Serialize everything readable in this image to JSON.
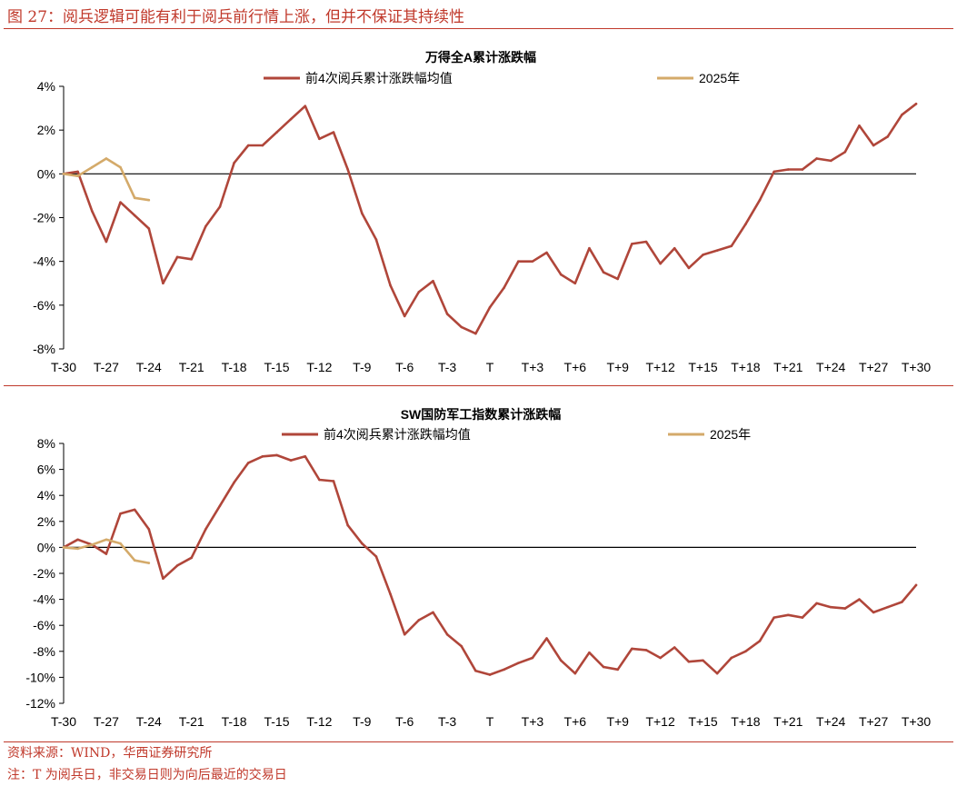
{
  "figure": {
    "title": "图 27：阅兵逻辑可能有利于阅兵前行情上涨，但并不保证其持续性",
    "source": "资料来源：WIND，华西证券研究所",
    "note": "注：T 为阅兵日，非交易日则为向后最近的交易日"
  },
  "colors": {
    "avg": "#b0463a",
    "y2025": "#d4aa6a",
    "accent": "#c0392b"
  },
  "chart_data": [
    {
      "type": "line",
      "title": "万得全A累计涨跌幅",
      "x_ticks": [
        "T-30",
        "T-27",
        "T-24",
        "T-21",
        "T-18",
        "T-15",
        "T-12",
        "T-9",
        "T-6",
        "T-3",
        "T",
        "T+3",
        "T+6",
        "T+9",
        "T+12",
        "T+15",
        "T+18",
        "T+21",
        "T+24",
        "T+27",
        "T+30"
      ],
      "x_range": [
        -30,
        30
      ],
      "ylim": [
        -8,
        4
      ],
      "y_ticks": [
        4,
        2,
        0,
        -2,
        -4,
        -6,
        -8
      ],
      "legend_position": "top",
      "series": [
        {
          "name": "前4次阅兵累计涨跌幅均值",
          "color": "#b0463a",
          "x": [
            -30,
            -29,
            -28,
            -27,
            -26,
            -25,
            -24,
            -23,
            -22,
            -21,
            -20,
            -19,
            -18,
            -17,
            -16,
            -15,
            -14,
            -13,
            -12,
            -11,
            -10,
            -9,
            -8,
            -7,
            -6,
            -5,
            -4,
            -3,
            -2,
            -1,
            0,
            1,
            2,
            3,
            4,
            5,
            6,
            7,
            8,
            9,
            10,
            11,
            12,
            13,
            14,
            15,
            16,
            17,
            18,
            19,
            20,
            21,
            22,
            23,
            24,
            25,
            26,
            27,
            28,
            29,
            30
          ],
          "values": [
            0,
            0.1,
            -1.7,
            -3.1,
            -1.3,
            -1.9,
            -2.5,
            -5,
            -3.8,
            -3.9,
            -2.4,
            -1.5,
            0.5,
            1.3,
            1.3,
            1.9,
            2.5,
            3.1,
            1.6,
            1.9,
            0.2,
            -1.8,
            -3,
            -5.1,
            -6.5,
            -5.4,
            -4.9,
            -6.4,
            -7,
            -7.3,
            -6.1,
            -5.2,
            -4,
            -4,
            -3.6,
            -4.6,
            -5,
            -3.4,
            -4.5,
            -4.8,
            -3.2,
            -3.1,
            -4.1,
            -3.4,
            -4.3,
            -3.7,
            -3.5,
            -3.3,
            -2.3,
            -1.2,
            0.1,
            0.2,
            0.2,
            0.7,
            0.6,
            1,
            2.2,
            1.3,
            1.7,
            2.7,
            3.2
          ]
        },
        {
          "name": "2025年",
          "color": "#d4aa6a",
          "x": [
            -30,
            -29,
            -28,
            -27,
            -26,
            -25,
            -24
          ],
          "values": [
            0,
            -0.1,
            0.3,
            0.7,
            0.3,
            -1.1,
            -1.2
          ]
        }
      ]
    },
    {
      "type": "line",
      "title": "SW国防军工指数累计涨跌幅",
      "x_ticks": [
        "T-30",
        "T-27",
        "T-24",
        "T-21",
        "T-18",
        "T-15",
        "T-12",
        "T-9",
        "T-6",
        "T-3",
        "T",
        "T+3",
        "T+6",
        "T+9",
        "T+12",
        "T+15",
        "T+18",
        "T+21",
        "T+24",
        "T+27",
        "T+30"
      ],
      "x_range": [
        -30,
        30
      ],
      "ylim": [
        -12,
        8
      ],
      "y_ticks": [
        8,
        6,
        4,
        2,
        0,
        -2,
        -4,
        -6,
        -8,
        -10,
        -12
      ],
      "legend_position": "top",
      "series": [
        {
          "name": "前4次阅兵累计涨跌幅均值",
          "color": "#b0463a",
          "x": [
            -30,
            -29,
            -28,
            -27,
            -26,
            -25,
            -24,
            -23,
            -22,
            -21,
            -20,
            -19,
            -18,
            -17,
            -16,
            -15,
            -14,
            -13,
            -12,
            -11,
            -10,
            -9,
            -8,
            -7,
            -6,
            -5,
            -4,
            -3,
            -2,
            -1,
            0,
            1,
            2,
            3,
            4,
            5,
            6,
            7,
            8,
            9,
            10,
            11,
            12,
            13,
            14,
            15,
            16,
            17,
            18,
            19,
            20,
            21,
            22,
            23,
            24,
            25,
            26,
            27,
            28,
            29,
            30
          ],
          "values": [
            0,
            0.6,
            0.2,
            -0.5,
            2.6,
            2.9,
            1.4,
            -2.4,
            -1.4,
            -0.8,
            1.4,
            3.2,
            5,
            6.5,
            7,
            7.1,
            6.7,
            7,
            5.2,
            5.1,
            1.7,
            0.3,
            -0.7,
            -3.6,
            -6.7,
            -5.6,
            -5,
            -6.7,
            -7.6,
            -9.5,
            -9.8,
            -9.4,
            -8.9,
            -8.5,
            -7,
            -8.7,
            -9.7,
            -8.1,
            -9.2,
            -9.4,
            -7.8,
            -7.9,
            -8.5,
            -7.7,
            -8.8,
            -8.7,
            -9.7,
            -8.5,
            -8,
            -7.2,
            -5.4,
            -5.2,
            -5.4,
            -4.3,
            -4.6,
            -4.7,
            -4,
            -5,
            -4.6,
            -4.2,
            -2.9
          ]
        },
        {
          "name": "2025年",
          "color": "#d4aa6a",
          "x": [
            -30,
            -29,
            -28,
            -27,
            -26,
            -25,
            -24
          ],
          "values": [
            0,
            -0.1,
            0.2,
            0.6,
            0.3,
            -1,
            -1.2
          ]
        }
      ]
    }
  ]
}
